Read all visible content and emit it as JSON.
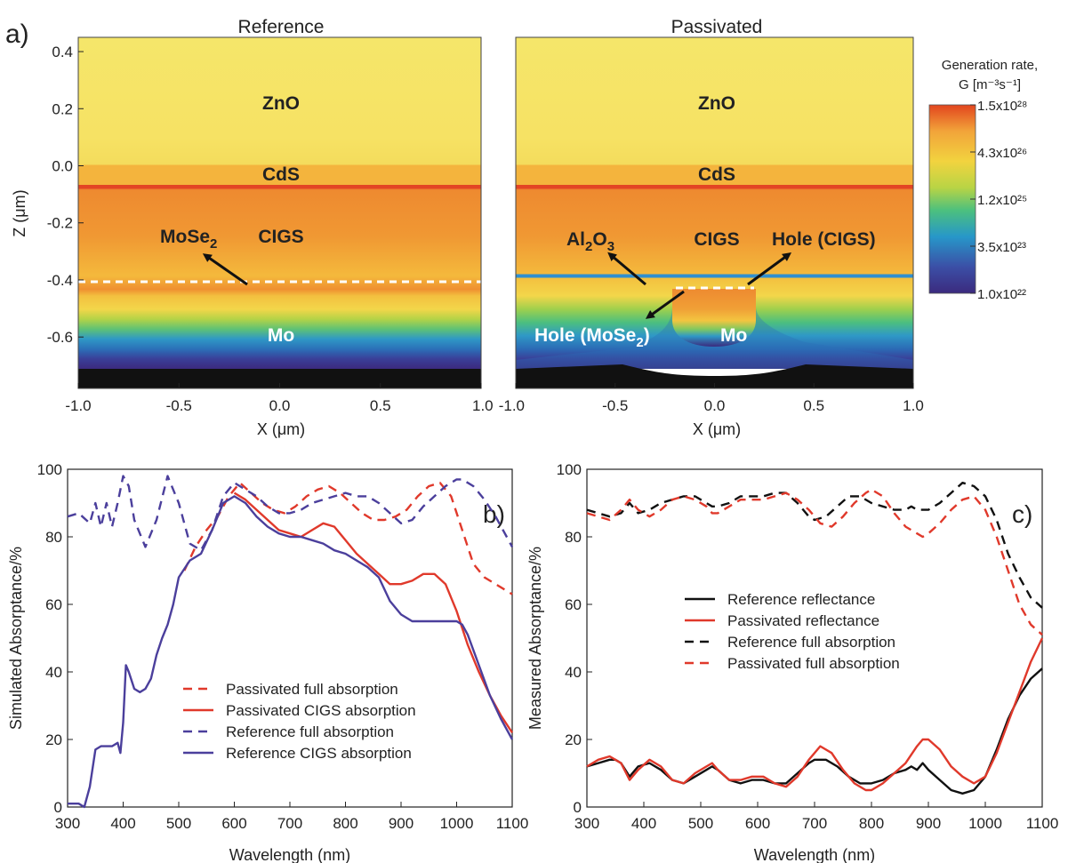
{
  "panel_a": {
    "label": "a)",
    "left_title": "Reference",
    "right_title": "Passivated",
    "ylabel": "Z (μm)",
    "xlabel": "X (μm)",
    "xticks": [
      "-1.0",
      "-0.5",
      "0.0",
      "0.5",
      "1.0"
    ],
    "yticks": [
      "0.4",
      "0.2",
      "0.0",
      "-0.2",
      "-0.4",
      "-0.6"
    ],
    "ytick_values": [
      0.4,
      0.2,
      0.0,
      -0.2,
      -0.4,
      -0.6
    ],
    "xlim": [
      -1.0,
      1.0
    ],
    "ylim": [
      -0.78,
      0.45
    ],
    "layers_left": {
      "zno": "ZnO",
      "cds": "CdS",
      "cigs": "CIGS",
      "mo": "Mo",
      "mose2": "MoSe2"
    },
    "layers_right": {
      "zno": "ZnO",
      "cds": "CdS",
      "cigs": "CIGS",
      "mo": "Mo",
      "al2o3": "Al2O3",
      "hole_cigs": "Hole (CIGS)",
      "hole_mose2": "Hole (MoSe2)"
    },
    "colorbar": {
      "title_line1": "Generation rate,",
      "title_line2": "G [m⁻³s⁻¹]",
      "ticks": [
        "1.5x10²⁸",
        "4.3x10²⁶",
        "1.2x10²⁵",
        "3.5x10²³",
        "1.0x10²²"
      ],
      "colors": [
        "#e2451e",
        "#f2a43a",
        "#f2d33f",
        "#b8d445",
        "#4cc07e",
        "#2797c9",
        "#3b4fa6",
        "#3b2a7e"
      ]
    }
  },
  "chart_data": [
    {
      "type": "line",
      "panel": "b)",
      "xlabel": "Wavelength (nm)",
      "ylabel": "Simulated Absorptance/%",
      "xlim": [
        300,
        1100
      ],
      "ylim": [
        0,
        100
      ],
      "xticks": [
        300,
        400,
        500,
        600,
        700,
        800,
        900,
        1000,
        1100
      ],
      "yticks": [
        0,
        20,
        40,
        60,
        80,
        100
      ],
      "legend_position": "lower-center",
      "series": [
        {
          "name": "Passivated full absorption",
          "color": "#e0392b",
          "style": "dashed",
          "x": [
            510,
            530,
            550,
            570,
            590,
            610,
            630,
            650,
            670,
            690,
            710,
            730,
            750,
            770,
            790,
            810,
            830,
            850,
            870,
            890,
            910,
            930,
            950,
            970,
            990,
            1010,
            1030,
            1050,
            1070,
            1090,
            1100
          ],
          "y": [
            70,
            77,
            82,
            86,
            92,
            96,
            93,
            90,
            88,
            87,
            89,
            92,
            94,
            95,
            93,
            90,
            87,
            85,
            85,
            86,
            88,
            92,
            95,
            96,
            92,
            82,
            72,
            68,
            66,
            64,
            63
          ]
        },
        {
          "name": "Passivated CIGS absorption",
          "color": "#e0392b",
          "style": "solid",
          "x": [
            600,
            620,
            640,
            660,
            680,
            700,
            720,
            740,
            760,
            780,
            800,
            820,
            840,
            860,
            880,
            900,
            920,
            940,
            960,
            980,
            1000,
            1020,
            1040,
            1060,
            1080,
            1100
          ],
          "y": [
            93,
            91,
            88,
            85,
            82,
            81,
            80,
            82,
            84,
            83,
            79,
            75,
            72,
            69,
            66,
            66,
            67,
            69,
            69,
            66,
            58,
            48,
            40,
            33,
            27,
            22
          ]
        },
        {
          "name": "Reference full absorption",
          "color": "#4b3f9c",
          "style": "dashed",
          "x": [
            300,
            320,
            340,
            350,
            360,
            370,
            380,
            390,
            400,
            410,
            420,
            440,
            460,
            480,
            500,
            520,
            540,
            560,
            580,
            600,
            620,
            640,
            660,
            680,
            700,
            720,
            740,
            760,
            780,
            800,
            820,
            840,
            860,
            880,
            900,
            920,
            940,
            960,
            980,
            1000,
            1010,
            1030,
            1050,
            1070,
            1090,
            1100
          ],
          "y": [
            86,
            87,
            84,
            90,
            83,
            90,
            83,
            90,
            98,
            95,
            85,
            77,
            85,
            98,
            90,
            78,
            76,
            82,
            92,
            96,
            94,
            92,
            89,
            87,
            87,
            88,
            90,
            91,
            92,
            93,
            92,
            92,
            90,
            87,
            84,
            85,
            89,
            92,
            95,
            97,
            97,
            95,
            91,
            86,
            80,
            77
          ]
        },
        {
          "name": "Reference CIGS absorption",
          "color": "#4b3f9c",
          "style": "solid",
          "x": [
            300,
            320,
            330,
            340,
            350,
            360,
            370,
            380,
            390,
            395,
            400,
            405,
            410,
            420,
            430,
            440,
            450,
            460,
            470,
            480,
            490,
            500,
            520,
            540,
            560,
            580,
            600,
            620,
            640,
            660,
            680,
            700,
            720,
            740,
            760,
            780,
            800,
            820,
            840,
            860,
            880,
            900,
            920,
            940,
            960,
            980,
            1000,
            1010,
            1020,
            1040,
            1060,
            1080,
            1100
          ],
          "y": [
            1,
            1,
            0,
            6,
            17,
            18,
            18,
            18,
            19,
            16,
            25,
            42,
            40,
            35,
            34,
            35,
            38,
            45,
            50,
            54,
            60,
            68,
            73,
            75,
            82,
            90,
            92,
            90,
            86,
            83,
            81,
            80,
            80,
            79,
            78,
            76,
            75,
            73,
            71,
            68,
            61,
            57,
            55,
            55,
            55,
            55,
            55,
            54,
            51,
            42,
            33,
            26,
            20
          ]
        }
      ]
    },
    {
      "type": "line",
      "panel": "c)",
      "xlabel": "Wavelength (nm)",
      "ylabel": "Measured Absorptance/%",
      "xlim": [
        300,
        1100
      ],
      "ylim": [
        0,
        100
      ],
      "xticks": [
        300,
        400,
        500,
        600,
        700,
        800,
        900,
        1000,
        1100
      ],
      "yticks": [
        0,
        20,
        40,
        60,
        80,
        100
      ],
      "legend_position": "center-right",
      "series": [
        {
          "name": "Reference reflectance",
          "color": "#111111",
          "style": "solid",
          "x": [
            300,
            320,
            340,
            350,
            360,
            375,
            390,
            410,
            430,
            450,
            470,
            490,
            510,
            520,
            530,
            550,
            570,
            590,
            610,
            630,
            650,
            670,
            690,
            700,
            720,
            740,
            760,
            780,
            800,
            820,
            840,
            860,
            870,
            880,
            890,
            900,
            920,
            940,
            960,
            980,
            1000,
            1020,
            1040,
            1060,
            1080,
            1100
          ],
          "y": [
            12,
            13,
            14,
            14,
            13,
            9,
            12,
            13,
            11,
            8,
            7,
            9,
            11,
            12,
            11,
            8,
            7,
            8,
            8,
            7,
            7,
            10,
            13,
            14,
            14,
            12,
            9,
            7,
            7,
            8,
            10,
            11,
            12,
            11,
            13,
            11,
            8,
            5,
            4,
            5,
            9,
            17,
            26,
            33,
            38,
            41
          ]
        },
        {
          "name": "Passivated reflectance",
          "color": "#e0392b",
          "style": "solid",
          "x": [
            300,
            320,
            340,
            350,
            360,
            375,
            390,
            410,
            430,
            450,
            470,
            490,
            510,
            520,
            530,
            550,
            570,
            590,
            610,
            630,
            650,
            670,
            690,
            710,
            730,
            750,
            770,
            790,
            800,
            820,
            840,
            860,
            880,
            890,
            900,
            920,
            940,
            960,
            980,
            1000,
            1020,
            1040,
            1060,
            1080,
            1100
          ],
          "y": [
            12,
            14,
            15,
            14,
            13,
            8,
            11,
            14,
            12,
            8,
            7,
            10,
            12,
            13,
            11,
            8,
            8,
            9,
            9,
            7,
            6,
            9,
            14,
            18,
            16,
            11,
            7,
            5,
            5,
            7,
            10,
            13,
            18,
            20,
            20,
            17,
            12,
            9,
            7,
            9,
            16,
            25,
            34,
            43,
            50
          ]
        },
        {
          "name": "Reference full absorption",
          "color": "#111111",
          "style": "dashed",
          "x": [
            300,
            320,
            340,
            360,
            375,
            390,
            410,
            430,
            450,
            470,
            490,
            510,
            520,
            530,
            550,
            570,
            590,
            610,
            630,
            650,
            670,
            690,
            700,
            720,
            740,
            760,
            780,
            800,
            820,
            840,
            860,
            870,
            880,
            900,
            920,
            940,
            960,
            980,
            1000,
            1020,
            1040,
            1060,
            1080,
            1100
          ],
          "y": [
            88,
            87,
            86,
            87,
            90,
            87,
            88,
            90,
            91,
            92,
            92,
            90,
            89,
            89,
            90,
            92,
            92,
            92,
            93,
            93,
            90,
            86,
            85,
            86,
            89,
            92,
            92,
            90,
            89,
            88,
            88,
            89,
            88,
            88,
            90,
            93,
            96,
            95,
            92,
            85,
            75,
            68,
            62,
            59
          ]
        },
        {
          "name": "Passivated full absorption",
          "color": "#e0392b",
          "style": "dashed",
          "x": [
            300,
            320,
            340,
            360,
            375,
            390,
            410,
            430,
            450,
            470,
            490,
            510,
            520,
            530,
            550,
            570,
            590,
            610,
            630,
            650,
            670,
            690,
            710,
            730,
            750,
            770,
            790,
            800,
            820,
            840,
            860,
            880,
            890,
            900,
            920,
            940,
            960,
            980,
            1000,
            1020,
            1040,
            1060,
            1080,
            1100
          ],
          "y": [
            87,
            86,
            85,
            88,
            91,
            88,
            86,
            88,
            91,
            92,
            91,
            89,
            87,
            87,
            89,
            91,
            91,
            91,
            92,
            93,
            91,
            88,
            84,
            83,
            86,
            90,
            93,
            94,
            92,
            87,
            83,
            81,
            80,
            81,
            84,
            88,
            91,
            92,
            88,
            80,
            70,
            60,
            54,
            51
          ]
        }
      ]
    }
  ]
}
